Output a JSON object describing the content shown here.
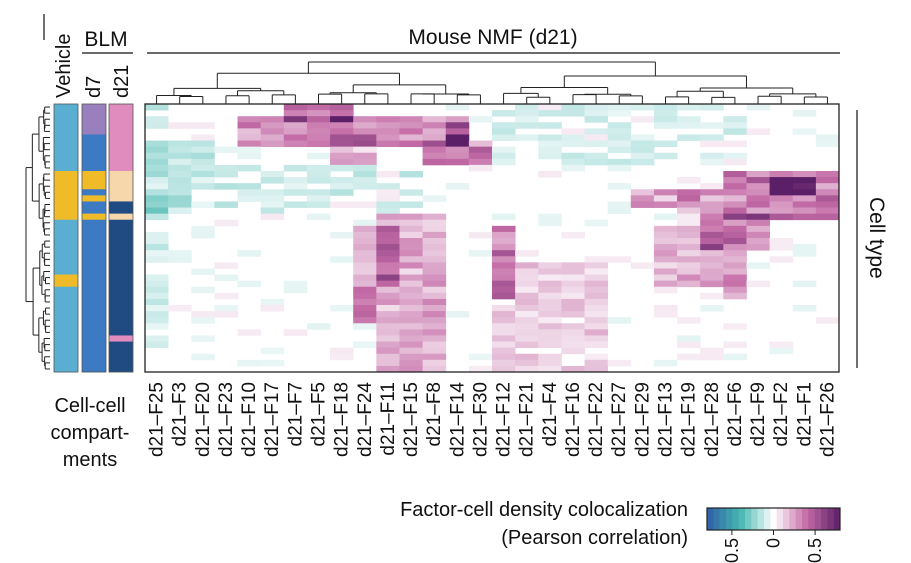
{
  "chart_data": {
    "type": "heatmap",
    "title": "Mouse NMF (d21)",
    "side_groups": {
      "vehicle": "Vehicle",
      "blm": "BLM",
      "d7": "d7",
      "d21": "d21"
    },
    "row_label": "Cell type",
    "left_caption": [
      "Cell-cell",
      "compart-",
      "ments"
    ],
    "legend": {
      "title_line1": "Factor-cell density colocalization",
      "title_line2": "(Pearson correlation)",
      "ticks": [
        "-0.5",
        "0",
        "0.5"
      ],
      "range": [
        -0.8,
        0.8
      ]
    },
    "columns": [
      "d21–F25",
      "d21–F3",
      "d21–F20",
      "d21–F23",
      "d21–F10",
      "d21–F17",
      "d21–F7",
      "d21–F5",
      "d21–F18",
      "d21–F24",
      "d21–F11",
      "d21–F15",
      "d21–F8",
      "d21–F14",
      "d21–F30",
      "d21–F12",
      "d21–F21",
      "d21–F4",
      "d21–F16",
      "d21–F22",
      "d21–F27",
      "d21–F29",
      "d21–F13",
      "d21–F19",
      "d21–F28",
      "d21–F6",
      "d21–F9",
      "d21–F2",
      "d21–F1",
      "d21–F26"
    ],
    "num_rows": 44,
    "colors": {
      "neg": "#2f5fa8",
      "mid": "#ffffff",
      "pos": "#5a1f66",
      "pos_mid": "#c46ba6",
      "neg_mid": "#46b7b0",
      "comp_light": "#5aaed2",
      "comp_yellow": "#f0bb28",
      "comp_blue": "#3c7ac4",
      "comp_dark": "#1f4a82",
      "comp_purple": "#9a7fbf",
      "comp_pink": "#e08cbf",
      "comp_peach": "#f6d6ab"
    }
  }
}
